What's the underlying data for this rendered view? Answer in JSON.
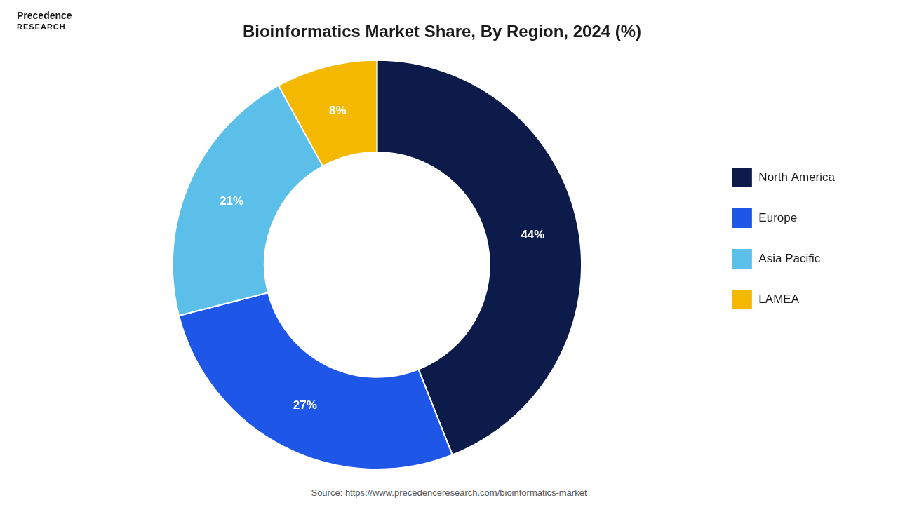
{
  "chart_data": {
    "type": "donut",
    "title": "Bioinformatics Market Share, By Region, 2024 (%)",
    "categories": [
      "North America",
      "Europe",
      "Asia Pacific",
      "LAMEA"
    ],
    "values": [
      44,
      27,
      21,
      8
    ],
    "value_labels": [
      "44%",
      "27%",
      "21%",
      "8%"
    ],
    "colors": [
      "#0d1b4b",
      "#1e56e8",
      "#5bbfea",
      "#f5b800"
    ],
    "data_labels": true,
    "legend": "right",
    "annotations": [
      "Precedence",
      "RESEARCH",
      "Source: https://www.precedenceresearch.com/bioinformatics-market"
    ]
  }
}
